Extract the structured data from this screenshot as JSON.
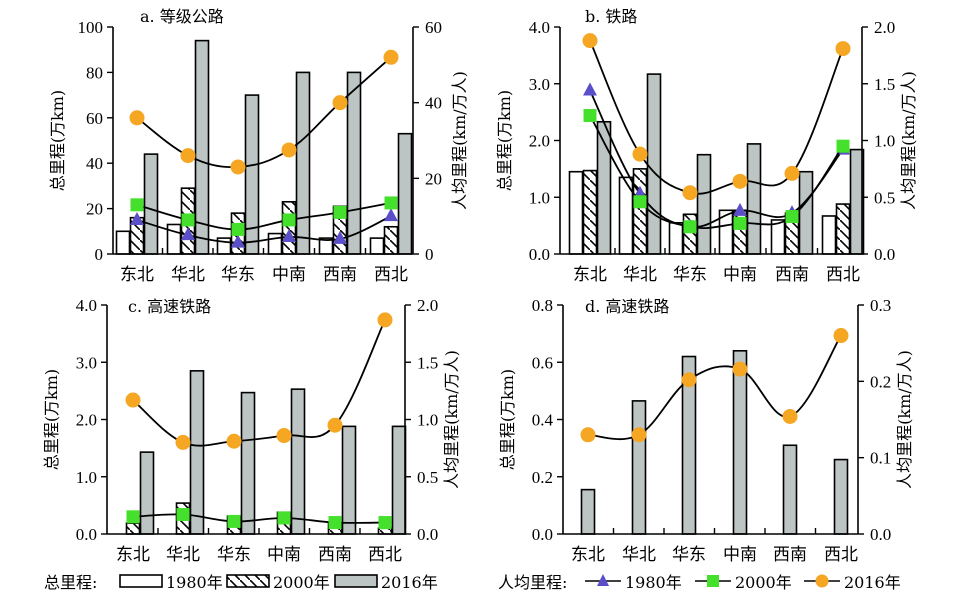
{
  "colors": {
    "bar2016": "#bcc4c4",
    "marker1980": "#5a4fc8",
    "marker2000": "#44e02c",
    "marker2016": "#f5a623",
    "line": "#000000"
  },
  "legend": {
    "total_label": "总里程:",
    "total_items": [
      "1980年",
      "2000年",
      "2016年"
    ],
    "percap_label": "人均里程:",
    "percap_items": [
      "1980年",
      "2000年",
      "2016年"
    ]
  },
  "chart_data": [
    {
      "id": "a",
      "type": "bar",
      "title": "a. 等级公路",
      "categories": [
        "东北",
        "华北",
        "华东",
        "中南",
        "西南",
        "西北"
      ],
      "ylabel": "总里程(万km)",
      "y2label": "人均里程(km/万人)",
      "ylim": [
        0,
        100
      ],
      "yticks": [
        "0",
        "20",
        "40",
        "60",
        "80",
        "100"
      ],
      "y2lim": [
        0,
        60
      ],
      "y2ticks": [
        "0",
        "20",
        "40",
        "60"
      ],
      "bar_series": [
        {
          "name": "1980年",
          "values": [
            10,
            13,
            7,
            9,
            7,
            7
          ]
        },
        {
          "name": "2000年",
          "values": [
            16,
            29,
            18,
            23,
            21,
            12
          ]
        },
        {
          "name": "2016年",
          "values": [
            44,
            94,
            70,
            80,
            80,
            53
          ]
        }
      ],
      "line_series": [
        {
          "name": "1980年",
          "values": [
            9,
            5,
            3,
            4.5,
            4,
            10
          ]
        },
        {
          "name": "2000年",
          "values": [
            13,
            9,
            6.5,
            9,
            11,
            13.5
          ]
        },
        {
          "name": "2016年",
          "values": [
            36,
            26,
            23,
            27.5,
            40,
            52
          ]
        }
      ]
    },
    {
      "id": "b",
      "type": "bar",
      "title": "b. 铁路",
      "categories": [
        "东北",
        "华北",
        "华东",
        "中南",
        "西南",
        "西北"
      ],
      "ylabel": "总里程(万km)",
      "y2label": "人均里程(km/万人)",
      "ylim": [
        0,
        4.0
      ],
      "yticks": [
        "0.0",
        "1.0",
        "2.0",
        "3.0",
        "4.0"
      ],
      "y2lim": [
        0,
        2.0
      ],
      "y2ticks": [
        "0.0",
        "0.5",
        "1.0",
        "1.5",
        "2.0"
      ],
      "bar_series": [
        {
          "name": "1980年",
          "values": [
            1.45,
            1.35,
            0.55,
            0.77,
            0.6,
            0.67
          ]
        },
        {
          "name": "2000年",
          "values": [
            1.47,
            1.5,
            0.7,
            0.77,
            0.72,
            0.88
          ]
        },
        {
          "name": "2016年",
          "values": [
            2.33,
            3.17,
            1.75,
            1.94,
            1.45,
            1.84
          ]
        }
      ],
      "line_series": [
        {
          "name": "1980年",
          "values": [
            1.44,
            0.53,
            0.24,
            0.38,
            0.36,
            0.92
          ]
        },
        {
          "name": "2000年",
          "values": [
            1.22,
            0.46,
            0.24,
            0.27,
            0.33,
            0.95
          ]
        },
        {
          "name": "2016年",
          "values": [
            1.88,
            0.88,
            0.54,
            0.64,
            0.71,
            1.81
          ]
        }
      ]
    },
    {
      "id": "c",
      "type": "bar",
      "title": "c. 高速铁路",
      "categories": [
        "东北",
        "华北",
        "华东",
        "中南",
        "西南",
        "西北"
      ],
      "ylabel": "总里程(万km)",
      "y2label": "人均里程(km/万人)",
      "ylim": [
        0,
        4.0
      ],
      "yticks": [
        "0.0",
        "1.0",
        "2.0",
        "3.0",
        "4.0"
      ],
      "y2lim": [
        0,
        2.0
      ],
      "y2ticks": [
        "0.0",
        "0.5",
        "1.0",
        "1.5",
        "2.0"
      ],
      "bar_series": [
        {
          "name": "1980年",
          "values": [
            0,
            0,
            0,
            0,
            0,
            0
          ]
        },
        {
          "name": "2000年",
          "values": [
            0.19,
            0.54,
            0.31,
            0.38,
            0.2,
            0.1
          ]
        },
        {
          "name": "2016年",
          "values": [
            1.43,
            2.85,
            2.47,
            2.53,
            1.88,
            1.88
          ]
        }
      ],
      "line_series": [
        {
          "name": "2000年",
          "values": [
            0.15,
            0.17,
            0.11,
            0.14,
            0.1,
            0.1
          ]
        },
        {
          "name": "2016年",
          "values": [
            1.17,
            0.8,
            0.81,
            0.86,
            0.95,
            1.87
          ]
        }
      ]
    },
    {
      "id": "d",
      "type": "bar",
      "title": "d. 高速铁路",
      "categories": [
        "东北",
        "华北",
        "华东",
        "中南",
        "西南",
        "西北"
      ],
      "ylabel": "总里程(万km)",
      "y2label": "人均里程(km/万人)",
      "ylim": [
        0,
        0.8
      ],
      "yticks": [
        "0.0",
        "0.2",
        "0.4",
        "0.6",
        "0.8"
      ],
      "y2lim": [
        0,
        0.3
      ],
      "y2ticks": [
        "0.0",
        "0.1",
        "0.2",
        "0.3"
      ],
      "bar_series": [
        {
          "name": "2016年",
          "values": [
            0.155,
            0.465,
            0.62,
            0.64,
            0.31,
            0.26
          ]
        }
      ],
      "line_series": [
        {
          "name": "2016年",
          "values": [
            0.13,
            0.13,
            0.202,
            0.216,
            0.154,
            0.26
          ]
        }
      ]
    }
  ]
}
